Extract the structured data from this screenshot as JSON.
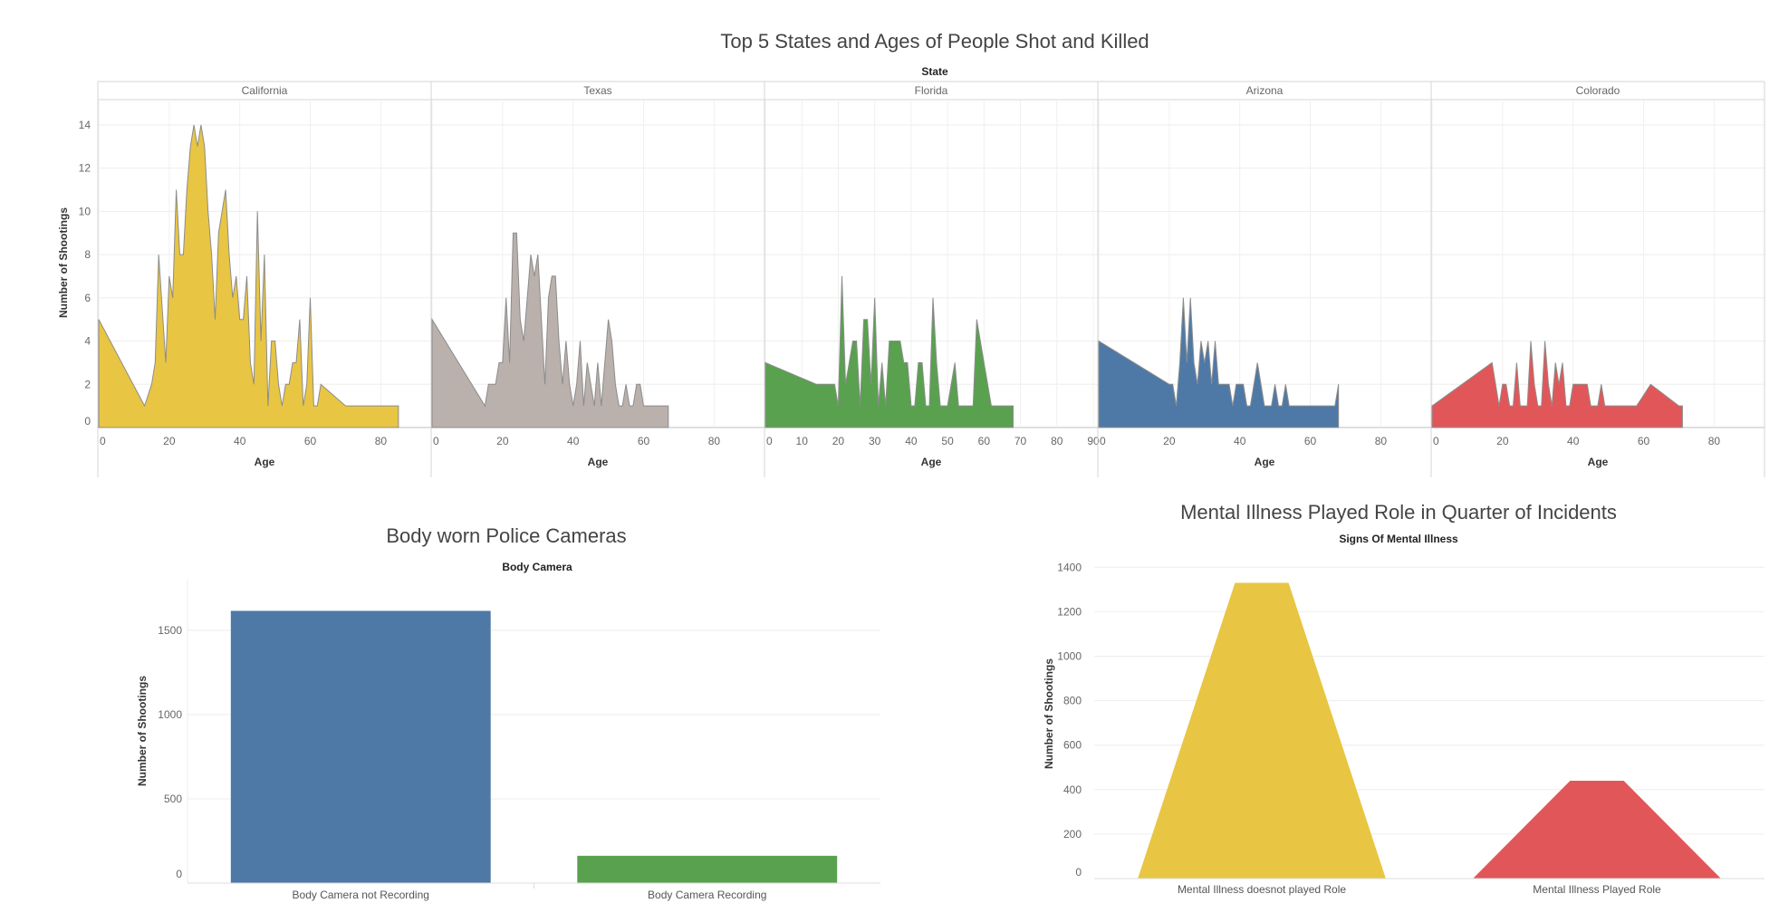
{
  "dashboard": {
    "charts": [
      {
        "title": "Top 5 States and Ages of People Shot and Killed",
        "column_header": "State",
        "ylabel": "Number of Shootings",
        "xlabel": "Age",
        "type": "area",
        "yticks": [
          0,
          2,
          4,
          6,
          8,
          10,
          12,
          14
        ],
        "ylim": [
          0,
          15
        ],
        "panels": [
          {
            "name": "California",
            "color": "#E8C543",
            "xlim": [
              0,
              93
            ],
            "xticks": [
              0,
              20,
              40,
              60,
              80
            ],
            "points": [
              [
                0,
                5
              ],
              [
                13,
                1
              ],
              [
                15,
                2
              ],
              [
                16,
                3
              ],
              [
                17,
                8
              ],
              [
                19,
                3
              ],
              [
                20,
                7
              ],
              [
                21,
                6
              ],
              [
                22,
                11
              ],
              [
                23,
                8
              ],
              [
                24,
                8
              ],
              [
                25,
                11
              ],
              [
                26,
                13
              ],
              [
                27,
                14
              ],
              [
                28,
                13
              ],
              [
                29,
                14
              ],
              [
                30,
                13
              ],
              [
                31,
                10
              ],
              [
                32,
                8
              ],
              [
                33,
                5
              ],
              [
                34,
                9
              ],
              [
                35,
                10
              ],
              [
                36,
                11
              ],
              [
                37,
                8
              ],
              [
                38,
                6
              ],
              [
                39,
                7
              ],
              [
                40,
                5
              ],
              [
                41,
                5
              ],
              [
                42,
                7
              ],
              [
                43,
                3
              ],
              [
                44,
                2
              ],
              [
                45,
                10
              ],
              [
                46,
                4
              ],
              [
                47,
                8
              ],
              [
                48,
                1
              ],
              [
                49,
                4
              ],
              [
                50,
                4
              ],
              [
                51,
                2
              ],
              [
                52,
                1
              ],
              [
                53,
                2
              ],
              [
                54,
                2
              ],
              [
                55,
                3
              ],
              [
                56,
                3
              ],
              [
                57,
                5
              ],
              [
                58,
                1
              ],
              [
                59,
                2
              ],
              [
                60,
                6
              ],
              [
                61,
                1
              ],
              [
                62,
                1
              ],
              [
                63,
                2
              ],
              [
                70,
                1
              ],
              [
                85,
                1
              ]
            ]
          },
          {
            "name": "Texas",
            "color": "#BAB0AC",
            "xlim": [
              0,
              93
            ],
            "xticks": [
              0,
              20,
              40,
              60,
              80
            ],
            "points": [
              [
                0,
                5
              ],
              [
                15,
                1
              ],
              [
                16,
                2
              ],
              [
                18,
                2
              ],
              [
                19,
                3
              ],
              [
                20,
                3
              ],
              [
                21,
                6
              ],
              [
                22,
                3
              ],
              [
                23,
                9
              ],
              [
                24,
                9
              ],
              [
                25,
                5
              ],
              [
                26,
                4
              ],
              [
                27,
                6
              ],
              [
                28,
                8
              ],
              [
                29,
                7
              ],
              [
                30,
                8
              ],
              [
                31,
                5
              ],
              [
                32,
                2
              ],
              [
                33,
                6
              ],
              [
                34,
                7
              ],
              [
                35,
                7
              ],
              [
                36,
                4
              ],
              [
                37,
                2
              ],
              [
                38,
                4
              ],
              [
                39,
                2
              ],
              [
                40,
                1
              ],
              [
                41,
                2
              ],
              [
                42,
                4
              ],
              [
                43,
                1
              ],
              [
                44,
                3
              ],
              [
                45,
                2
              ],
              [
                46,
                1
              ],
              [
                47,
                3
              ],
              [
                48,
                1
              ],
              [
                49,
                3
              ],
              [
                50,
                5
              ],
              [
                51,
                4
              ],
              [
                52,
                2
              ],
              [
                53,
                1
              ],
              [
                54,
                1
              ],
              [
                55,
                2
              ],
              [
                56,
                1
              ],
              [
                57,
                1
              ],
              [
                58,
                2
              ],
              [
                59,
                2
              ],
              [
                60,
                1
              ],
              [
                67,
                1
              ]
            ]
          },
          {
            "name": "Florida",
            "color": "#59A14F",
            "xlim": [
              0,
              90
            ],
            "xticks": [
              0,
              10,
              20,
              30,
              40,
              50,
              60,
              70,
              80,
              90
            ],
            "points": [
              [
                0,
                3
              ],
              [
                14,
                2
              ],
              [
                19,
                2
              ],
              [
                20,
                1
              ],
              [
                21,
                7
              ],
              [
                22,
                2
              ],
              [
                23,
                3
              ],
              [
                24,
                4
              ],
              [
                25,
                4
              ],
              [
                26,
                1
              ],
              [
                27,
                5
              ],
              [
                28,
                5
              ],
              [
                29,
                2
              ],
              [
                30,
                6
              ],
              [
                31,
                1
              ],
              [
                32,
                3
              ],
              [
                33,
                1
              ],
              [
                34,
                4
              ],
              [
                35,
                4
              ],
              [
                36,
                4
              ],
              [
                37,
                4
              ],
              [
                38,
                3
              ],
              [
                39,
                3
              ],
              [
                40,
                1
              ],
              [
                41,
                1
              ],
              [
                42,
                3
              ],
              [
                43,
                3
              ],
              [
                44,
                1
              ],
              [
                45,
                1
              ],
              [
                46,
                6
              ],
              [
                47,
                3
              ],
              [
                48,
                1
              ],
              [
                49,
                1
              ],
              [
                50,
                1
              ],
              [
                51,
                2
              ],
              [
                52,
                3
              ],
              [
                53,
                1
              ],
              [
                54,
                1
              ],
              [
                55,
                1
              ],
              [
                57,
                1
              ],
              [
                58,
                5
              ],
              [
                59,
                4
              ],
              [
                60,
                3
              ],
              [
                61,
                2
              ],
              [
                62,
                1
              ],
              [
                68,
                1
              ]
            ]
          },
          {
            "name": "Arizona",
            "color": "#4E79A7",
            "xlim": [
              0,
              93
            ],
            "xticks": [
              0,
              20,
              40,
              60,
              80
            ],
            "points": [
              [
                0,
                4
              ],
              [
                20,
                2
              ],
              [
                21,
                2
              ],
              [
                22,
                1
              ],
              [
                23,
                3
              ],
              [
                24,
                6
              ],
              [
                25,
                3
              ],
              [
                26,
                6
              ],
              [
                27,
                3
              ],
              [
                28,
                2
              ],
              [
                29,
                4
              ],
              [
                30,
                3
              ],
              [
                31,
                4
              ],
              [
                32,
                2
              ],
              [
                33,
                4
              ],
              [
                34,
                2
              ],
              [
                35,
                2
              ],
              [
                36,
                2
              ],
              [
                37,
                2
              ],
              [
                38,
                1
              ],
              [
                39,
                2
              ],
              [
                40,
                2
              ],
              [
                41,
                2
              ],
              [
                42,
                1
              ],
              [
                43,
                1
              ],
              [
                44,
                2
              ],
              [
                45,
                3
              ],
              [
                46,
                2
              ],
              [
                47,
                1
              ],
              [
                48,
                1
              ],
              [
                49,
                1
              ],
              [
                50,
                2
              ],
              [
                51,
                1
              ],
              [
                52,
                1
              ],
              [
                53,
                2
              ],
              [
                54,
                1
              ],
              [
                55,
                1
              ],
              [
                67,
                1
              ],
              [
                68,
                2
              ]
            ]
          },
          {
            "name": "Colorado",
            "color": "#E15759",
            "xlim": [
              0,
              93
            ],
            "xticks": [
              0,
              20,
              40,
              60,
              80
            ],
            "points": [
              [
                0,
                1
              ],
              [
                17,
                3
              ],
              [
                19,
                1
              ],
              [
                20,
                2
              ],
              [
                21,
                2
              ],
              [
                22,
                1
              ],
              [
                23,
                1
              ],
              [
                24,
                3
              ],
              [
                25,
                1
              ],
              [
                26,
                1
              ],
              [
                27,
                1
              ],
              [
                28,
                4
              ],
              [
                29,
                2
              ],
              [
                30,
                1
              ],
              [
                31,
                1
              ],
              [
                32,
                4
              ],
              [
                33,
                2
              ],
              [
                34,
                1
              ],
              [
                35,
                3
              ],
              [
                36,
                2
              ],
              [
                37,
                3
              ],
              [
                38,
                1
              ],
              [
                39,
                1
              ],
              [
                40,
                2
              ],
              [
                41,
                2
              ],
              [
                42,
                2
              ],
              [
                43,
                2
              ],
              [
                44,
                2
              ],
              [
                45,
                1
              ],
              [
                46,
                1
              ],
              [
                47,
                1
              ],
              [
                48,
                2
              ],
              [
                49,
                1
              ],
              [
                50,
                1
              ],
              [
                51,
                1
              ],
              [
                52,
                1
              ],
              [
                55,
                1
              ],
              [
                56,
                1
              ],
              [
                58,
                1
              ],
              [
                62,
                2
              ],
              [
                70,
                1
              ],
              [
                71,
                1
              ]
            ]
          }
        ]
      },
      {
        "title": "Body worn Police Cameras",
        "column_header": "Body Camera",
        "ylabel": "Number of Shootings",
        "type": "bar",
        "ylim": [
          0,
          1800
        ],
        "yticks": [
          0,
          500,
          1000,
          1500
        ],
        "categories": [
          "Body Camera not Recording",
          "Body Camera Recording"
        ],
        "values": [
          1615,
          162
        ],
        "colors": [
          "#4E79A7",
          "#59A14F"
        ]
      },
      {
        "title": "Mental Illness Played Role in Quarter of Incidents",
        "column_header": "Signs Of Mental Illness",
        "ylabel": "Number of Shootings",
        "type": "area",
        "ylim": [
          0,
          1450
        ],
        "yticks": [
          0,
          200,
          400,
          600,
          800,
          1000,
          1200,
          1400
        ],
        "categories": [
          "Mental Illness doesnot played Role",
          "Mental Illness Played Role"
        ],
        "values": [
          1330,
          440
        ],
        "colors": [
          "#E8C543",
          "#E15759"
        ]
      }
    ]
  }
}
